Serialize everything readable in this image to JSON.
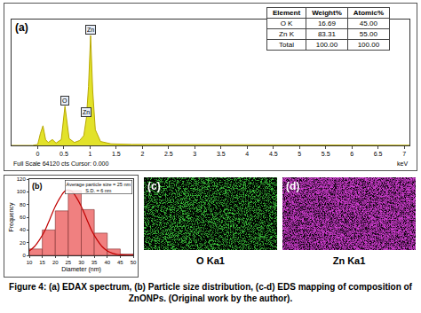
{
  "chart_data": [
    {
      "panel": "(a)",
      "type": "area",
      "x_label": "keV",
      "status": "Full Scale 64120 cts Cursor: 0.000",
      "x": [
        -0.5,
        -0.1,
        0,
        0.05,
        0.1,
        0.15,
        0.2,
        0.28,
        0.35,
        0.45,
        0.52,
        0.6,
        0.7,
        0.8,
        0.88,
        0.93,
        0.97,
        1.01,
        1.05,
        1.1,
        1.2,
        1.4,
        1.8,
        2.5,
        3.5,
        4.5,
        5.5,
        6.5,
        7.1
      ],
      "values": [
        0,
        0,
        500,
        6000,
        10000,
        3000,
        1500,
        3000,
        1200,
        3000,
        20000,
        3500,
        1500,
        2500,
        5000,
        14000,
        30000,
        56000,
        28000,
        8000,
        2000,
        800,
        500,
        400,
        300,
        250,
        200,
        150,
        100
      ],
      "color": "#e2e22a",
      "xlim": [
        -0.5,
        7.1
      ],
      "xticks": [
        0,
        0.5,
        1,
        1.5,
        2,
        2.5,
        3,
        3.5,
        4,
        4.5,
        5,
        5.5,
        6,
        6.5,
        7
      ],
      "ylim": [
        0,
        64120
      ],
      "tick_labels": "x",
      "grid": false,
      "annotations": [
        {
          "x": 0.52,
          "y": 20000,
          "text": "O"
        },
        {
          "x": 0.93,
          "y": 14000,
          "text": "Zn"
        },
        {
          "x": 1.01,
          "y": 56000,
          "text": "Zn"
        }
      ]
    },
    {
      "panel": "(b)",
      "type": "histogram",
      "x_label": "Diameter (nm)",
      "y_label": "Frequency",
      "bins": [
        10,
        15,
        20,
        25,
        30,
        35,
        40,
        45,
        50
      ],
      "values": [
        10,
        40,
        70,
        102,
        72,
        35,
        10,
        2
      ],
      "color": "#f08080",
      "xlim": [
        10,
        50
      ],
      "xticks": [
        10,
        15,
        20,
        25,
        30,
        35,
        40,
        45,
        50
      ],
      "ylim": [
        0,
        120
      ],
      "yticks": [
        0,
        20,
        40,
        60,
        80,
        100,
        120
      ],
      "grid": false,
      "annotations": [
        {
          "text": "Average particle size = 25 nm"
        },
        {
          "text": "S.D. = 6 nm"
        }
      ],
      "curve": {
        "x": [
          10,
          12,
          14,
          16,
          18,
          20,
          22,
          24,
          26,
          28,
          30,
          32,
          34,
          36,
          38,
          40,
          42,
          44,
          46,
          48,
          50
        ],
        "values": [
          7,
          14,
          25,
          39,
          58,
          77,
          92,
          102,
          102,
          92,
          77,
          58,
          39,
          25,
          14,
          7,
          3.4,
          1.4,
          0.5,
          0.2,
          0.1
        ],
        "color": "#c00000"
      }
    }
  ],
  "eds_table": {
    "header": [
      "Element",
      "Weight%",
      "Atomic%"
    ],
    "rows": [
      [
        "O K",
        "16.69",
        "45.00"
      ],
      [
        "Zn K",
        "83.31",
        "55.00"
      ],
      [
        "Total",
        "100.00",
        "100.00"
      ]
    ]
  },
  "maps": [
    {
      "panel": "(c)",
      "label": "O Ka1",
      "color": "#3cc83c"
    },
    {
      "panel": "(d)",
      "label": "Zn Ka1",
      "color": "#c83cc8"
    }
  ],
  "caption": "Figure 4: (a) EDAX spectrum, (b) Particle size distribution, (c-d) EDS mapping of composition of ZnONPs. (Original work by the author)."
}
